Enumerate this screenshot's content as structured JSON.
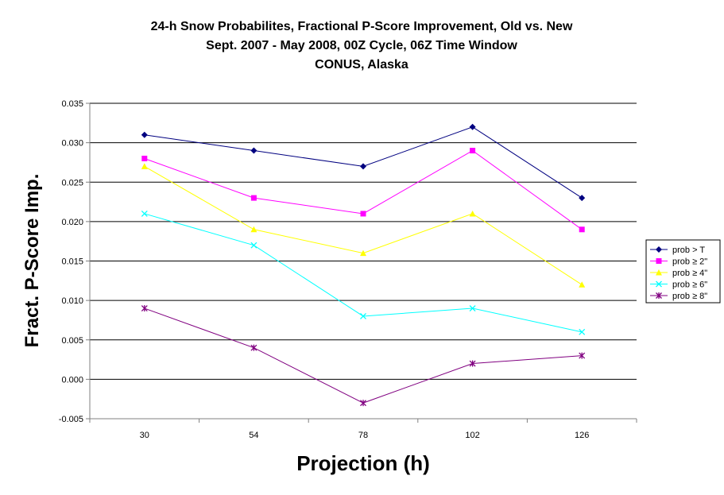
{
  "chart_data": {
    "type": "line",
    "title": [
      "24-h Snow Probabilites, Fractional P-Score Improvement, Old vs. New",
      "Sept. 2007 - May 2008, 00Z Cycle, 06Z Time Window",
      "CONUS, Alaska"
    ],
    "xlabel": "Projection (h)",
    "ylabel": "Fract. P-Score Imp.",
    "categories": [
      "30",
      "54",
      "78",
      "102",
      "126"
    ],
    "ylim": [
      -0.005,
      0.035
    ],
    "yticks": [
      "0.035",
      "0.030",
      "0.025",
      "0.020",
      "0.015",
      "0.010",
      "0.005",
      "0.000",
      "-0.005"
    ],
    "ytick_values": [
      0.035,
      0.03,
      0.025,
      0.02,
      0.015,
      0.01,
      0.005,
      0.0,
      -0.005
    ],
    "grid": "horizontal",
    "legend_position": "right",
    "series": [
      {
        "name": "prob > T",
        "values": [
          0.031,
          0.029,
          0.027,
          0.032,
          0.023
        ],
        "color": "#000080",
        "marker": "diamond"
      },
      {
        "name": "prob ≥ 2\"",
        "values": [
          0.028,
          0.023,
          0.021,
          0.029,
          0.019
        ],
        "color": "#ff00ff",
        "marker": "square"
      },
      {
        "name": "prob ≥ 4\"",
        "values": [
          0.027,
          0.019,
          0.016,
          0.021,
          0.012
        ],
        "color": "#ffff00",
        "marker": "triangle"
      },
      {
        "name": "prob ≥ 6\"",
        "values": [
          0.021,
          0.017,
          0.008,
          0.009,
          0.006
        ],
        "color": "#00ffff",
        "marker": "x"
      },
      {
        "name": "prob ≥ 8\"",
        "values": [
          0.009,
          0.004,
          -0.003,
          0.002,
          0.003
        ],
        "color": "#800080",
        "marker": "star"
      }
    ]
  }
}
